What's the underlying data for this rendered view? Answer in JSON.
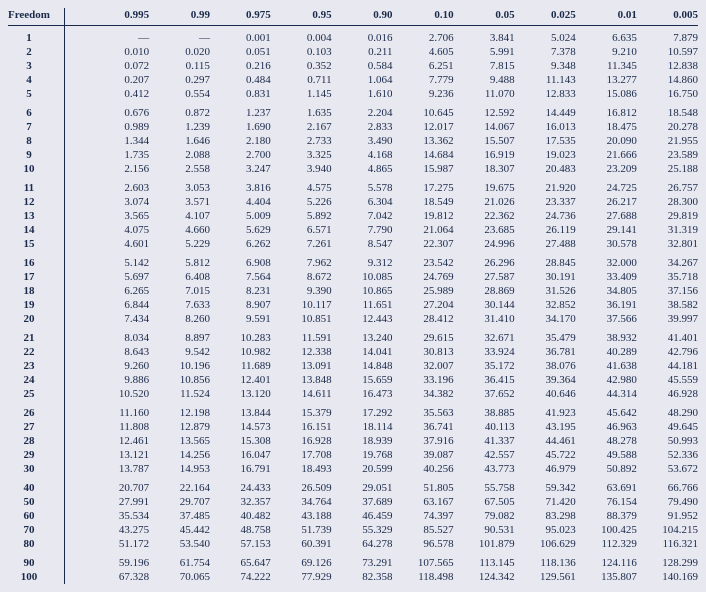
{
  "table": {
    "header_label": "Freedom",
    "probs": [
      "0.995",
      "0.99",
      "0.975",
      "0.95",
      "0.90",
      "0.10",
      "0.05",
      "0.025",
      "0.01",
      "0.005"
    ],
    "groups": [
      [
        {
          "df": "1",
          "v": [
            "—",
            "—",
            "0.001",
            "0.004",
            "0.016",
            "2.706",
            "3.841",
            "5.024",
            "6.635",
            "7.879"
          ]
        },
        {
          "df": "2",
          "v": [
            "0.010",
            "0.020",
            "0.051",
            "0.103",
            "0.211",
            "4.605",
            "5.991",
            "7.378",
            "9.210",
            "10.597"
          ]
        },
        {
          "df": "3",
          "v": [
            "0.072",
            "0.115",
            "0.216",
            "0.352",
            "0.584",
            "6.251",
            "7.815",
            "9.348",
            "11.345",
            "12.838"
          ]
        },
        {
          "df": "4",
          "v": [
            "0.207",
            "0.297",
            "0.484",
            "0.711",
            "1.064",
            "7.779",
            "9.488",
            "11.143",
            "13.277",
            "14.860"
          ]
        },
        {
          "df": "5",
          "v": [
            "0.412",
            "0.554",
            "0.831",
            "1.145",
            "1.610",
            "9.236",
            "11.070",
            "12.833",
            "15.086",
            "16.750"
          ]
        }
      ],
      [
        {
          "df": "6",
          "v": [
            "0.676",
            "0.872",
            "1.237",
            "1.635",
            "2.204",
            "10.645",
            "12.592",
            "14.449",
            "16.812",
            "18.548"
          ]
        },
        {
          "df": "7",
          "v": [
            "0.989",
            "1.239",
            "1.690",
            "2.167",
            "2.833",
            "12.017",
            "14.067",
            "16.013",
            "18.475",
            "20.278"
          ]
        },
        {
          "df": "8",
          "v": [
            "1.344",
            "1.646",
            "2.180",
            "2.733",
            "3.490",
            "13.362",
            "15.507",
            "17.535",
            "20.090",
            "21.955"
          ]
        },
        {
          "df": "9",
          "v": [
            "1.735",
            "2.088",
            "2.700",
            "3.325",
            "4.168",
            "14.684",
            "16.919",
            "19.023",
            "21.666",
            "23.589"
          ]
        },
        {
          "df": "10",
          "v": [
            "2.156",
            "2.558",
            "3.247",
            "3.940",
            "4.865",
            "15.987",
            "18.307",
            "20.483",
            "23.209",
            "25.188"
          ]
        }
      ],
      [
        {
          "df": "11",
          "v": [
            "2.603",
            "3.053",
            "3.816",
            "4.575",
            "5.578",
            "17.275",
            "19.675",
            "21.920",
            "24.725",
            "26.757"
          ]
        },
        {
          "df": "12",
          "v": [
            "3.074",
            "3.571",
            "4.404",
            "5.226",
            "6.304",
            "18.549",
            "21.026",
            "23.337",
            "26.217",
            "28.300"
          ]
        },
        {
          "df": "13",
          "v": [
            "3.565",
            "4.107",
            "5.009",
            "5.892",
            "7.042",
            "19.812",
            "22.362",
            "24.736",
            "27.688",
            "29.819"
          ]
        },
        {
          "df": "14",
          "v": [
            "4.075",
            "4.660",
            "5.629",
            "6.571",
            "7.790",
            "21.064",
            "23.685",
            "26.119",
            "29.141",
            "31.319"
          ]
        },
        {
          "df": "15",
          "v": [
            "4.601",
            "5.229",
            "6.262",
            "7.261",
            "8.547",
            "22.307",
            "24.996",
            "27.488",
            "30.578",
            "32.801"
          ]
        }
      ],
      [
        {
          "df": "16",
          "v": [
            "5.142",
            "5.812",
            "6.908",
            "7.962",
            "9.312",
            "23.542",
            "26.296",
            "28.845",
            "32.000",
            "34.267"
          ]
        },
        {
          "df": "17",
          "v": [
            "5.697",
            "6.408",
            "7.564",
            "8.672",
            "10.085",
            "24.769",
            "27.587",
            "30.191",
            "33.409",
            "35.718"
          ]
        },
        {
          "df": "18",
          "v": [
            "6.265",
            "7.015",
            "8.231",
            "9.390",
            "10.865",
            "25.989",
            "28.869",
            "31.526",
            "34.805",
            "37.156"
          ]
        },
        {
          "df": "19",
          "v": [
            "6.844",
            "7.633",
            "8.907",
            "10.117",
            "11.651",
            "27.204",
            "30.144",
            "32.852",
            "36.191",
            "38.582"
          ]
        },
        {
          "df": "20",
          "v": [
            "7.434",
            "8.260",
            "9.591",
            "10.851",
            "12.443",
            "28.412",
            "31.410",
            "34.170",
            "37.566",
            "39.997"
          ]
        }
      ],
      [
        {
          "df": "21",
          "v": [
            "8.034",
            "8.897",
            "10.283",
            "11.591",
            "13.240",
            "29.615",
            "32.671",
            "35.479",
            "38.932",
            "41.401"
          ]
        },
        {
          "df": "22",
          "v": [
            "8.643",
            "9.542",
            "10.982",
            "12.338",
            "14.041",
            "30.813",
            "33.924",
            "36.781",
            "40.289",
            "42.796"
          ]
        },
        {
          "df": "23",
          "v": [
            "9.260",
            "10.196",
            "11.689",
            "13.091",
            "14.848",
            "32.007",
            "35.172",
            "38.076",
            "41.638",
            "44.181"
          ]
        },
        {
          "df": "24",
          "v": [
            "9.886",
            "10.856",
            "12.401",
            "13.848",
            "15.659",
            "33.196",
            "36.415",
            "39.364",
            "42.980",
            "45.559"
          ]
        },
        {
          "df": "25",
          "v": [
            "10.520",
            "11.524",
            "13.120",
            "14.611",
            "16.473",
            "34.382",
            "37.652",
            "40.646",
            "44.314",
            "46.928"
          ]
        }
      ],
      [
        {
          "df": "26",
          "v": [
            "11.160",
            "12.198",
            "13.844",
            "15.379",
            "17.292",
            "35.563",
            "38.885",
            "41.923",
            "45.642",
            "48.290"
          ]
        },
        {
          "df": "27",
          "v": [
            "11.808",
            "12.879",
            "14.573",
            "16.151",
            "18.114",
            "36.741",
            "40.113",
            "43.195",
            "46.963",
            "49.645"
          ]
        },
        {
          "df": "28",
          "v": [
            "12.461",
            "13.565",
            "15.308",
            "16.928",
            "18.939",
            "37.916",
            "41.337",
            "44.461",
            "48.278",
            "50.993"
          ]
        },
        {
          "df": "29",
          "v": [
            "13.121",
            "14.256",
            "16.047",
            "17.708",
            "19.768",
            "39.087",
            "42.557",
            "45.722",
            "49.588",
            "52.336"
          ]
        },
        {
          "df": "30",
          "v": [
            "13.787",
            "14.953",
            "16.791",
            "18.493",
            "20.599",
            "40.256",
            "43.773",
            "46.979",
            "50.892",
            "53.672"
          ]
        }
      ],
      [
        {
          "df": "40",
          "v": [
            "20.707",
            "22.164",
            "24.433",
            "26.509",
            "29.051",
            "51.805",
            "55.758",
            "59.342",
            "63.691",
            "66.766"
          ]
        },
        {
          "df": "50",
          "v": [
            "27.991",
            "29.707",
            "32.357",
            "34.764",
            "37.689",
            "63.167",
            "67.505",
            "71.420",
            "76.154",
            "79.490"
          ]
        },
        {
          "df": "60",
          "v": [
            "35.534",
            "37.485",
            "40.482",
            "43.188",
            "46.459",
            "74.397",
            "79.082",
            "83.298",
            "88.379",
            "91.952"
          ]
        },
        {
          "df": "70",
          "v": [
            "43.275",
            "45.442",
            "48.758",
            "51.739",
            "55.329",
            "85.527",
            "90.531",
            "95.023",
            "100.425",
            "104.215"
          ]
        },
        {
          "df": "80",
          "v": [
            "51.172",
            "53.540",
            "57.153",
            "60.391",
            "64.278",
            "96.578",
            "101.879",
            "106.629",
            "112.329",
            "116.321"
          ]
        }
      ],
      [
        {
          "df": "90",
          "v": [
            "59.196",
            "61.754",
            "65.647",
            "69.126",
            "73.291",
            "107.565",
            "113.145",
            "118.136",
            "124.116",
            "128.299"
          ]
        },
        {
          "df": "100",
          "v": [
            "67.328",
            "70.065",
            "74.222",
            "77.929",
            "82.358",
            "118.498",
            "124.342",
            "129.561",
            "135.807",
            "140.169"
          ]
        }
      ]
    ]
  }
}
